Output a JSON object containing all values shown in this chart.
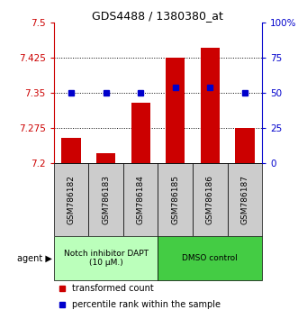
{
  "title": "GDS4488 / 1380380_at",
  "samples": [
    "GSM786182",
    "GSM786183",
    "GSM786184",
    "GSM786185",
    "GSM786186",
    "GSM786187"
  ],
  "transformed_counts": [
    7.255,
    7.222,
    7.33,
    7.425,
    7.445,
    7.275
  ],
  "percentile_ranks": [
    50,
    50,
    50,
    54,
    54,
    50
  ],
  "y_min": 7.2,
  "y_max": 7.5,
  "y_ticks": [
    7.2,
    7.275,
    7.35,
    7.425,
    7.5
  ],
  "y_tick_labels": [
    "7.2",
    "7.275",
    "7.35",
    "7.425",
    "7.5"
  ],
  "right_y_ticks": [
    0,
    25,
    50,
    75,
    100
  ],
  "right_y_tick_labels": [
    "0",
    "25",
    "50",
    "75",
    "100%"
  ],
  "bar_color": "#cc0000",
  "marker_color": "#0000cc",
  "bar_width": 0.55,
  "group1_label": "Notch inhibitor DAPT\n(10 μM.)",
  "group1_color": "#bbffbb",
  "group2_label": "DMSO control",
  "group2_color": "#44cc44",
  "agent_label": "agent",
  "legend_bar_label": "transformed count",
  "legend_marker_label": "percentile rank within the sample",
  "tick_label_color_left": "#cc0000",
  "tick_label_color_right": "#0000cc",
  "sample_box_color": "#cccccc",
  "grid_dotted_yvals": [
    7.275,
    7.35,
    7.425
  ]
}
